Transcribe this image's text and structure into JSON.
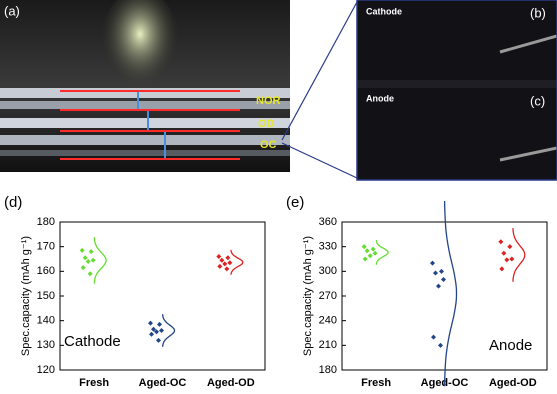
{
  "photos": {
    "panel_a": "(a)",
    "labels": [
      "NOR",
      "OD",
      "OC"
    ],
    "panel_b": "(b)",
    "panel_c": "(c)",
    "cathode": "Cathode",
    "anode": "Anode"
  },
  "chart_data": [
    {
      "type": "scatter",
      "panel": "(d)",
      "ylabel": "Spec.capacity (mAh g⁻¹)",
      "annotation": "Cathode",
      "categories": [
        "Fresh",
        "Aged-OC",
        "Aged-OD"
      ],
      "series": [
        {
          "color": "#66dd33",
          "values": [
            168.5,
            168,
            165.5,
            164.5,
            164,
            161.5,
            159
          ]
        },
        {
          "color": "#224488",
          "values": [
            139,
            138.5,
            136.5,
            136,
            135.5,
            134.5,
            132
          ]
        },
        {
          "color": "#dd2222",
          "values": [
            166,
            165.5,
            164.5,
            163.5,
            163,
            162,
            161
          ]
        }
      ],
      "ylim": [
        120,
        180
      ],
      "yticks": [
        120,
        130,
        140,
        150,
        160,
        170,
        180
      ]
    },
    {
      "type": "scatter",
      "panel": "(e)",
      "ylabel": "Spec.capacity (mAh g⁻¹)",
      "annotation": "Anode",
      "categories": [
        "Fresh",
        "Aged-OC",
        "Aged-OD"
      ],
      "series": [
        {
          "color": "#66dd33",
          "values": [
            330,
            327,
            325,
            322,
            319,
            315
          ]
        },
        {
          "color": "#224488",
          "values": [
            310,
            300,
            298,
            290,
            282,
            220,
            210
          ]
        },
        {
          "color": "#dd2222",
          "values": [
            336,
            330,
            322,
            315,
            314,
            303
          ]
        }
      ],
      "ylim": [
        180,
        360
      ],
      "yticks": [
        180,
        210,
        240,
        270,
        300,
        330,
        360
      ]
    }
  ]
}
